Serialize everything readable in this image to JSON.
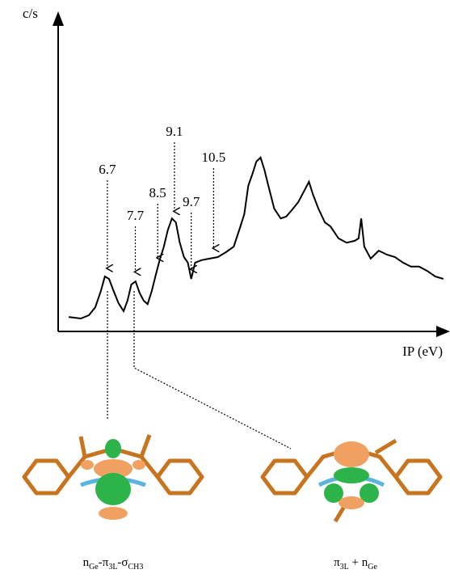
{
  "chart_data": {
    "type": "line",
    "ylabel": "c/s",
    "xlabel": "IP (eV)",
    "xlim": [
      4.94,
      18.9
    ],
    "ylim": [
      0,
      100
    ],
    "color": "#000000",
    "x": [
      5.32,
      5.75,
      6.04,
      6.27,
      6.47,
      6.61,
      6.76,
      6.9,
      7.1,
      7.28,
      7.42,
      7.56,
      7.71,
      7.85,
      8.0,
      8.14,
      8.29,
      8.43,
      8.57,
      8.72,
      8.86,
      9.01,
      9.15,
      9.29,
      9.44,
      9.58,
      9.7,
      9.84,
      10.07,
      10.36,
      10.65,
      10.94,
      11.22,
      11.46,
      11.6,
      11.74,
      11.89,
      12.03,
      12.18,
      12.32,
      12.46,
      12.67,
      12.9,
      13.1,
      13.3,
      13.53,
      13.76,
      13.91,
      14.05,
      14.25,
      14.48,
      14.68,
      14.97,
      15.26,
      15.55,
      15.69,
      15.78,
      15.89,
      16.12,
      16.41,
      16.7,
      16.99,
      17.28,
      17.56,
      17.85,
      18.14,
      18.43,
      18.72
    ],
    "values": [
      4.7,
      4.2,
      5.3,
      7.9,
      13.2,
      17.9,
      17.1,
      13.7,
      9.2,
      6.6,
      10.0,
      15.3,
      16.3,
      12.6,
      10.0,
      8.9,
      13.2,
      18.4,
      23.2,
      27.6,
      32.9,
      36.8,
      35.5,
      28.9,
      24.2,
      22.4,
      17.1,
      22.4,
      23.2,
      23.7,
      24.2,
      25.8,
      27.6,
      34.2,
      38.2,
      47.4,
      51.3,
      55.3,
      56.6,
      52.6,
      47.4,
      40.0,
      36.8,
      37.4,
      39.5,
      42.1,
      46.1,
      48.7,
      44.7,
      40.0,
      35.5,
      34.2,
      30.3,
      28.9,
      29.5,
      30.3,
      36.8,
      27.6,
      23.7,
      26.3,
      25.0,
      24.2,
      22.4,
      21.1,
      21.1,
      19.7,
      17.9,
      17.1
    ],
    "annotations": [
      6.7,
      7.7,
      8.5,
      9.1,
      9.7,
      10.5
    ],
    "captions": [
      [
        "n",
        "Ge",
        "-π",
        "3L",
        "-σ",
        "CH3"
      ],
      [
        "π",
        "3L",
        " + n",
        "Ge"
      ]
    ]
  }
}
